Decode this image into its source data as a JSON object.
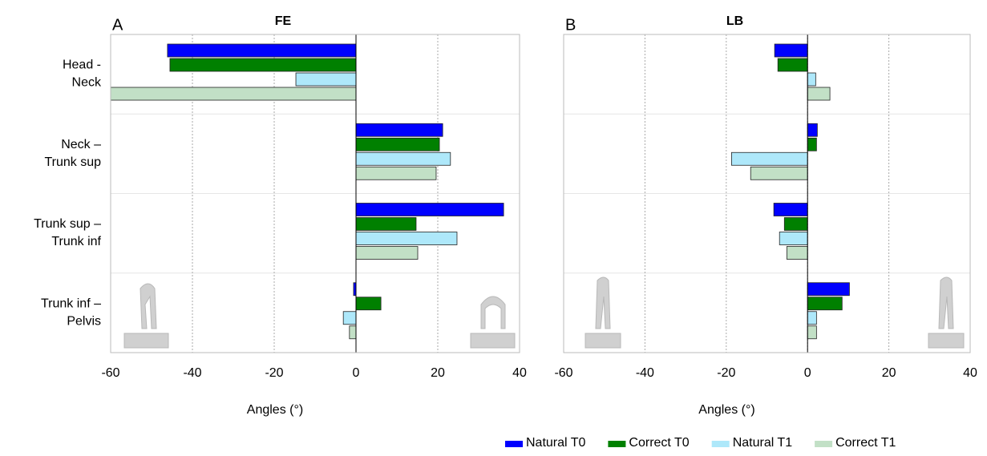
{
  "chart_data": [
    {
      "type": "bar",
      "orientation": "horizontal",
      "panel": "A",
      "title": "FE",
      "xlabel": "Angles (°)",
      "categories": [
        "Head -\nNeck",
        "Neck –\nTrunk sup",
        "Trunk sup –\nTrunk inf",
        "Trunk inf –\nPelvis"
      ],
      "series": [
        {
          "name": "Natural T0",
          "color": "#0000ff",
          "values": [
            -46.1,
            21.2,
            36.1,
            -0.6
          ]
        },
        {
          "name": "Correct T0",
          "color": "#008000",
          "values": [
            -45.5,
            20.4,
            14.7,
            6.1
          ]
        },
        {
          "name": "Natural T1",
          "color": "#aee8fa",
          "values": [
            -14.7,
            23.1,
            24.7,
            -3.1
          ]
        },
        {
          "name": "Correct T1",
          "color": "#c2e0c6",
          "values": [
            -60,
            19.6,
            15.1,
            -1.6
          ]
        }
      ],
      "xlim": [
        -60,
        40
      ],
      "xticks": [
        -60,
        -40,
        -20,
        0,
        20,
        40
      ],
      "grid": true
    },
    {
      "type": "bar",
      "orientation": "horizontal",
      "panel": "B",
      "title": "LB",
      "xlabel": "Angles (°)",
      "series": [
        {
          "color": "#0000ff",
          "values": [
            -8.1,
            2.4,
            -8.3,
            10.3
          ]
        },
        {
          "color": "#008000",
          "values": [
            -7.3,
            2.2,
            -5.7,
            8.5
          ]
        },
        {
          "color": "#aee8fa",
          "values": [
            2.0,
            -18.7,
            -6.9,
            2.2
          ]
        },
        {
          "color": "#c2e0c6",
          "values": [
            5.5,
            -14.0,
            -5.1,
            2.2
          ]
        }
      ],
      "xlim": [
        -60,
        40
      ],
      "xticks": [
        -60,
        -40,
        -20,
        0,
        20,
        40
      ],
      "grid": true
    }
  ]
}
